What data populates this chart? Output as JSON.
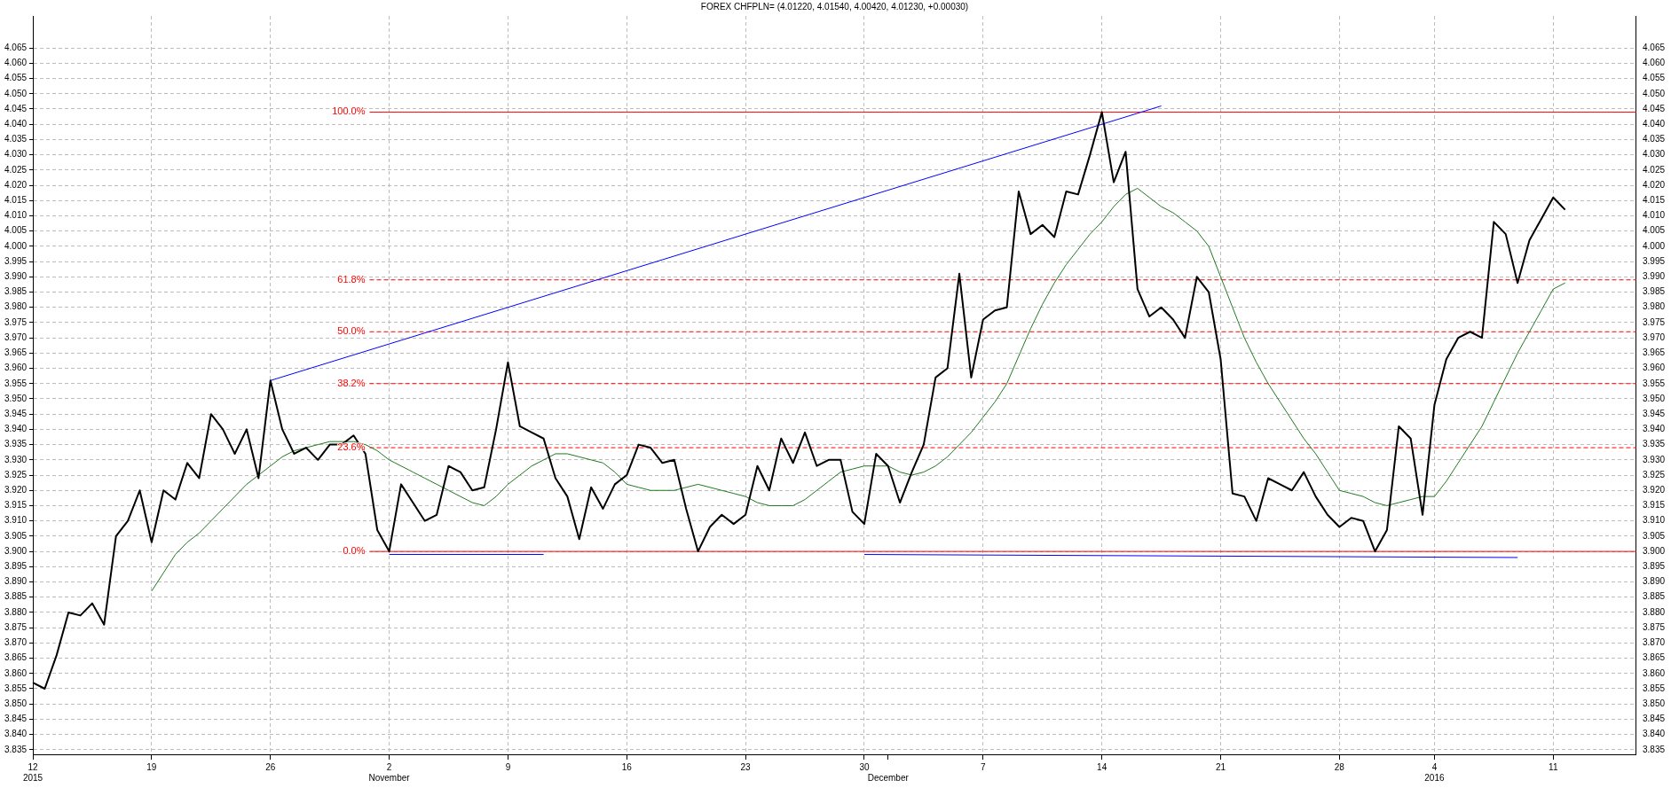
{
  "chart_data": {
    "type": "line",
    "title": "FOREX CHFPLN= (4.01220, 4.01540, 4.00420, 4.01230, +0.00030)",
    "categories": [
      "12\n2015",
      null,
      null,
      null,
      null,
      null,
      null,
      null,
      null,
      null,
      "19",
      null,
      null,
      null,
      null,
      null,
      null,
      null,
      null,
      null,
      "26",
      null,
      null,
      null,
      null,
      null,
      null,
      null,
      null,
      null,
      "2\nNovember",
      null,
      null,
      null,
      null,
      null,
      null,
      null,
      null,
      null,
      "9",
      null,
      null,
      null,
      null,
      null,
      null,
      null,
      null,
      null,
      "16",
      null,
      null,
      null,
      null,
      null,
      null,
      null,
      null,
      null,
      "23",
      null,
      null,
      null,
      null,
      null,
      null,
      null,
      null,
      null,
      "30",
      null,
      "\nDecember",
      null,
      null,
      null,
      null,
      null,
      null,
      null,
      "7",
      null,
      null,
      null,
      null,
      null,
      null,
      null,
      null,
      null,
      "14",
      null,
      null,
      null,
      null,
      null,
      null,
      null,
      null,
      null,
      "21",
      null,
      null,
      null,
      null,
      null,
      null,
      null,
      null,
      null,
      "28",
      null,
      null,
      null,
      null,
      null,
      null,
      null,
      "4\n2016",
      null,
      null,
      null,
      null,
      null,
      null,
      null,
      null,
      null,
      "11",
      null,
      null,
      null,
      null,
      null,
      null,
      null
    ],
    "series": [
      {
        "color": "#000000",
        "values": [
          3.857,
          3.855,
          3.866,
          3.88,
          3.879,
          3.883,
          3.876,
          3.905,
          3.91,
          3.92,
          3.903,
          3.92,
          3.917,
          3.929,
          3.924,
          3.945,
          3.94,
          3.932,
          3.94,
          3.924,
          3.956,
          3.94,
          3.932,
          3.934,
          3.93,
          3.935,
          3.935,
          3.938,
          3.932,
          3.907,
          3.9,
          3.922,
          3.916,
          3.91,
          3.912,
          3.928,
          3.926,
          3.92,
          3.921,
          3.94,
          3.962,
          3.941,
          3.939,
          3.937,
          3.924,
          3.918,
          3.904,
          3.921,
          3.914,
          3.922,
          3.925,
          3.935,
          3.934,
          3.929,
          3.93,
          3.914,
          3.9,
          3.908,
          3.912,
          3.909,
          3.912,
          3.928,
          3.92,
          3.937,
          3.929,
          3.939,
          3.928,
          3.93,
          3.93,
          3.913,
          3.909,
          3.932,
          3.928,
          3.916,
          3.926,
          3.935,
          3.957,
          3.96,
          3.991,
          3.957,
          3.976,
          3.979,
          3.98,
          4.018,
          4.004,
          4.007,
          4.003,
          4.018,
          4.017,
          4.03,
          4.044,
          4.021,
          4.031,
          3.986,
          3.977,
          3.98,
          3.976,
          3.97,
          3.99,
          3.985,
          3.963,
          3.919,
          3.918,
          3.91,
          3.924,
          3.922,
          3.92,
          3.926,
          3.918,
          3.912,
          3.908,
          3.911,
          3.91,
          3.9,
          3.907,
          3.941,
          3.937,
          3.912,
          3.948,
          3.963,
          3.97,
          3.972,
          3.97,
          4.008,
          4.004,
          3.988,
          4.002,
          4.009,
          4.016,
          4.012,
          null,
          null,
          null,
          null,
          null,
          null
        ]
      },
      {
        "color": "#1f7a1f",
        "values": [
          null,
          null,
          null,
          null,
          null,
          null,
          null,
          null,
          null,
          null,
          3.887,
          3.893,
          3.899,
          3.903,
          3.906,
          3.91,
          3.914,
          3.918,
          3.922,
          3.925,
          3.928,
          3.931,
          3.933,
          3.934,
          3.935,
          3.936,
          3.936,
          3.936,
          3.935,
          3.933,
          3.93,
          3.928,
          3.926,
          3.924,
          3.922,
          3.92,
          3.918,
          3.916,
          3.915,
          3.918,
          3.922,
          3.925,
          3.928,
          3.93,
          3.932,
          3.932,
          3.931,
          3.93,
          3.929,
          3.926,
          3.922,
          3.921,
          3.92,
          3.92,
          3.92,
          3.921,
          3.922,
          3.921,
          3.92,
          3.919,
          3.918,
          3.916,
          3.915,
          3.915,
          3.915,
          3.917,
          3.92,
          3.923,
          3.926,
          3.927,
          3.928,
          3.928,
          3.928,
          3.926,
          3.925,
          3.926,
          3.928,
          3.931,
          3.935,
          3.939,
          3.944,
          3.949,
          3.955,
          3.964,
          3.973,
          3.981,
          3.988,
          3.994,
          3.999,
          4.004,
          4.008,
          4.013,
          4.017,
          4.019,
          4.016,
          4.013,
          4.011,
          4.008,
          4.005,
          4.0,
          3.99,
          3.98,
          3.97,
          3.962,
          3.955,
          3.949,
          3.943,
          3.937,
          3.932,
          3.926,
          3.92,
          3.919,
          3.918,
          3.916,
          3.915,
          3.916,
          3.917,
          3.918,
          3.918,
          3.923,
          3.929,
          3.935,
          3.941,
          3.949,
          3.957,
          3.965,
          3.972,
          3.979,
          3.986,
          3.988,
          null,
          null,
          null,
          null,
          null,
          null
        ]
      },
      {
        "color": "#0000ff",
        "values": [
          null,
          null,
          null,
          null,
          null,
          null,
          null,
          null,
          null,
          null,
          null,
          null,
          null,
          null,
          null,
          null,
          null,
          null,
          null,
          null,
          3.956,
          null,
          null,
          null,
          null,
          null,
          null,
          null,
          null,
          null,
          null,
          null,
          null,
          null,
          null,
          null,
          null,
          null,
          null,
          null,
          null,
          null,
          null,
          null,
          null,
          null,
          null,
          null,
          null,
          null,
          null,
          null,
          null,
          null,
          null,
          null,
          null,
          null,
          null,
          null,
          null,
          null,
          null,
          null,
          null,
          null,
          null,
          null,
          null,
          null,
          null,
          null,
          null,
          null,
          null,
          null,
          null,
          null,
          null,
          null,
          null,
          null,
          null,
          null,
          null,
          null,
          null,
          null,
          null,
          null,
          null,
          null,
          null,
          null,
          null,
          4.046,
          null,
          null,
          null,
          null,
          null,
          null,
          null,
          null,
          null,
          null,
          null,
          null,
          null,
          null,
          null,
          null,
          null,
          null,
          null,
          null,
          null,
          null,
          null,
          null,
          null,
          null,
          null,
          null,
          null,
          null,
          null,
          null,
          null,
          null,
          null,
          null,
          null,
          null,
          null,
          null
        ]
      },
      {
        "color": "#0000ff",
        "values": [
          null,
          null,
          null,
          null,
          null,
          null,
          null,
          null,
          null,
          null,
          null,
          null,
          null,
          null,
          null,
          null,
          null,
          null,
          null,
          null,
          null,
          null,
          null,
          null,
          null,
          null,
          null,
          null,
          null,
          null,
          3.899,
          null,
          null,
          null,
          null,
          null,
          null,
          null,
          null,
          null,
          null,
          null,
          null,
          3.899,
          null,
          null,
          null,
          null,
          null,
          null,
          null,
          null,
          null,
          null,
          null,
          null,
          null,
          null,
          null,
          null,
          null,
          null,
          null,
          null,
          null,
          null,
          null,
          null,
          null,
          null,
          null,
          null,
          null,
          null,
          null,
          null,
          null,
          null,
          null,
          null,
          null,
          null,
          null,
          null,
          null,
          null,
          null,
          null,
          null,
          null,
          null,
          null,
          null,
          null,
          null,
          null,
          null,
          null,
          null,
          null,
          null,
          null,
          null,
          null,
          null,
          null,
          null,
          null,
          null,
          null,
          null,
          null,
          null,
          null,
          null,
          null,
          null,
          null,
          null,
          null,
          null,
          null,
          null,
          null,
          null,
          null,
          null,
          null,
          null,
          null,
          null,
          null,
          null,
          null,
          null,
          null
        ]
      },
      {
        "color": "#0000ff",
        "values": [
          null,
          null,
          null,
          null,
          null,
          null,
          null,
          null,
          null,
          null,
          null,
          null,
          null,
          null,
          null,
          null,
          null,
          null,
          null,
          null,
          null,
          null,
          null,
          null,
          null,
          null,
          null,
          null,
          null,
          null,
          null,
          null,
          null,
          null,
          null,
          null,
          null,
          null,
          null,
          null,
          null,
          null,
          null,
          null,
          null,
          null,
          null,
          null,
          null,
          null,
          null,
          null,
          null,
          null,
          null,
          null,
          null,
          null,
          null,
          null,
          null,
          null,
          null,
          null,
          null,
          null,
          null,
          null,
          null,
          null,
          3.899,
          null,
          null,
          null,
          null,
          null,
          null,
          null,
          null,
          null,
          null,
          null,
          null,
          null,
          null,
          null,
          null,
          null,
          null,
          null,
          null,
          null,
          null,
          null,
          null,
          null,
          null,
          null,
          null,
          null,
          null,
          null,
          null,
          null,
          null,
          null,
          null,
          null,
          null,
          null,
          null,
          null,
          null,
          null,
          null,
          null,
          null,
          null,
          null,
          null,
          null,
          null,
          null,
          null,
          null,
          3.898,
          null,
          null,
          null,
          null,
          null,
          null,
          null,
          null,
          null,
          null
        ]
      }
    ],
    "ylim": [
      3.8335,
      4.0755
    ],
    "yticks": [
      3.835,
      {
        "value": 3.84,
        "label": "3.840"
      },
      3.845,
      {
        "value": 3.85,
        "label": "3.850"
      },
      3.855,
      {
        "value": 3.86,
        "label": "3.860"
      },
      3.865,
      {
        "value": 3.87,
        "label": "3.870"
      },
      3.875,
      {
        "value": 3.88,
        "label": "3.880"
      },
      3.885,
      {
        "value": 3.89,
        "label": "3.890"
      },
      3.895,
      {
        "value": 3.9,
        "label": "3.900"
      },
      3.905,
      {
        "value": 3.91,
        "label": "3.910"
      },
      3.915,
      {
        "value": 3.92,
        "label": "3.920"
      },
      3.925,
      {
        "value": 3.93,
        "label": "3.930"
      },
      3.935,
      {
        "value": 3.94,
        "label": "3.940"
      },
      3.945,
      {
        "value": 3.95,
        "label": "3.950"
      },
      3.955,
      {
        "value": 3.96,
        "label": "3.960"
      },
      3.965,
      {
        "value": 3.97,
        "label": "3.970"
      },
      3.975,
      {
        "value": 3.98,
        "label": "3.980"
      },
      3.985,
      {
        "value": 3.99,
        "label": "3.990"
      },
      3.995,
      {
        "value": 4,
        "label": "4.000"
      },
      4.005,
      {
        "value": 4.01,
        "label": "4.010"
      },
      4.015,
      {
        "value": 4.02,
        "label": "4.020"
      },
      4.025,
      {
        "value": 4.03,
        "label": "4.030"
      },
      4.035,
      {
        "value": 4.04,
        "label": "4.040"
      },
      4.045,
      {
        "value": 4.05,
        "label": "4.050"
      },
      4.055,
      {
        "value": 4.06,
        "label": "4.060"
      },
      4.065
    ],
    "y2lim": [
      3.8335,
      4.0755
    ],
    "y2ticks": [
      3.835,
      {
        "value": 3.84,
        "label": "3.840"
      },
      3.845,
      {
        "value": 3.85,
        "label": "3.850"
      },
      3.855,
      {
        "value": 3.86,
        "label": "3.860"
      },
      3.865,
      {
        "value": 3.87,
        "label": "3.870"
      },
      3.875,
      {
        "value": 3.88,
        "label": "3.880"
      },
      3.885,
      {
        "value": 3.89,
        "label": "3.890"
      },
      3.895,
      {
        "value": 3.9,
        "label": "3.900"
      },
      3.905,
      {
        "value": 3.91,
        "label": "3.910"
      },
      3.915,
      {
        "value": 3.92,
        "label": "3.920"
      },
      3.925,
      {
        "value": 3.93,
        "label": "3.930"
      },
      3.935,
      {
        "value": 3.94,
        "label": "3.940"
      },
      3.945,
      {
        "value": 3.95,
        "label": "3.950"
      },
      3.955,
      {
        "value": 3.96,
        "label": "3.960"
      },
      3.965,
      {
        "value": 3.97,
        "label": "3.970"
      },
      3.975,
      {
        "value": 3.98,
        "label": "3.980"
      },
      3.985,
      {
        "value": 3.99,
        "label": "3.990"
      },
      3.995,
      {
        "value": 4,
        "label": "4.000"
      },
      4.005,
      {
        "value": 4.01,
        "label": "4.010"
      },
      4.015,
      {
        "value": 4.02,
        "label": "4.020"
      },
      4.025,
      {
        "value": 4.03,
        "label": "4.030"
      },
      4.035,
      {
        "value": 4.04,
        "label": "4.040"
      },
      4.045,
      {
        "value": 4.05,
        "label": "4.050"
      },
      4.055,
      {
        "value": 4.06,
        "label": "4.060"
      },
      4.065
    ],
    "grid": true,
    "marker": "none",
    "ref_lines": [
      {
        "axis": "y",
        "value": 4.044,
        "color": "#ff0000",
        "line_style": "solid"
      },
      {
        "axis": "y",
        "value": 3.989,
        "color": "#ff0000",
        "line_style": "dashed"
      },
      {
        "axis": "y",
        "value": 3.972,
        "color": "#ff0000",
        "line_style": "dashed"
      },
      {
        "axis": "y",
        "value": 3.955,
        "color": "#ff0000",
        "line_style": "dashed"
      },
      {
        "axis": "y",
        "value": 3.934,
        "color": "#ff0000",
        "line_style": "dashed"
      },
      {
        "axis": "y",
        "value": 3.9,
        "color": "#ff0000",
        "line_style": "solid"
      }
    ],
    "annotations": [
      "100.0%",
      "61.8%",
      "50.0%",
      "38.2%",
      "23.6%",
      "0.0%"
    ]
  }
}
